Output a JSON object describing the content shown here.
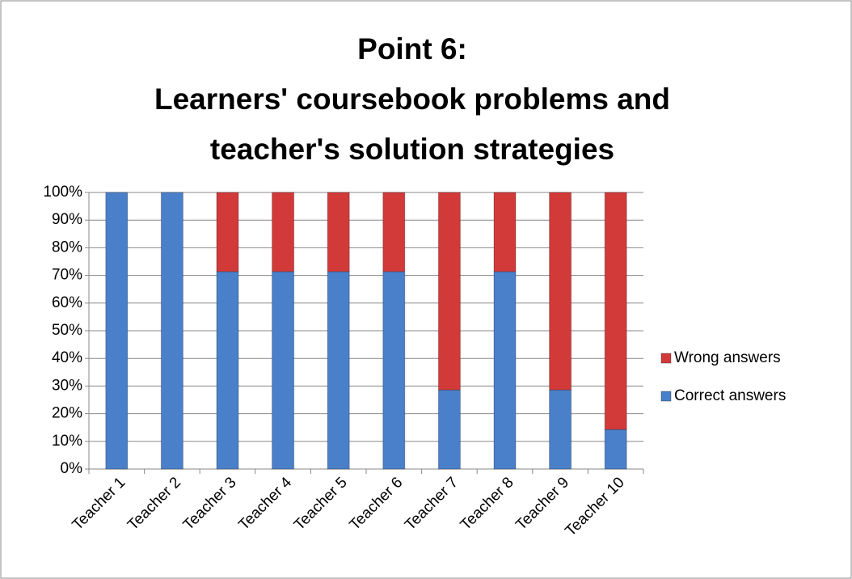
{
  "chart_data": {
    "type": "stacked_bar",
    "title": [
      "Point 6:",
      "Learners' coursebook problems and",
      "teacher's solution strategies"
    ],
    "categories": [
      "Teacher 1",
      "Teacher 2",
      "Teacher 3",
      "Teacher 4",
      "Teacher 5",
      "Teacher 6",
      "Teacher 7",
      "Teacher 8",
      "Teacher 9",
      "Teacher 10"
    ],
    "series": [
      {
        "name": "Correct answers",
        "color": "#4a7fc9",
        "values": [
          100,
          100,
          71.4,
          71.4,
          71.4,
          71.4,
          28.6,
          71.4,
          28.6,
          14.3
        ]
      },
      {
        "name": "Wrong answers",
        "color": "#d23a3a",
        "values": [
          0,
          0,
          28.6,
          28.6,
          28.6,
          28.6,
          71.4,
          28.6,
          71.4,
          85.7
        ]
      }
    ],
    "ylim": [
      0,
      100
    ],
    "yticks": [
      {
        "value": 0,
        "label": "0%"
      },
      {
        "value": 10,
        "label": "10%"
      },
      {
        "value": 20,
        "label": "20%"
      },
      {
        "value": 30,
        "label": "30%"
      },
      {
        "value": 40,
        "label": "40%"
      },
      {
        "value": 50,
        "label": "50%"
      },
      {
        "value": 60,
        "label": "60%"
      },
      {
        "value": 70,
        "label": "70%"
      },
      {
        "value": 80,
        "label": "80%"
      },
      {
        "value": 90,
        "label": "90%"
      },
      {
        "value": 100,
        "label": "100%"
      }
    ],
    "grid": true,
    "legend": "right"
  }
}
